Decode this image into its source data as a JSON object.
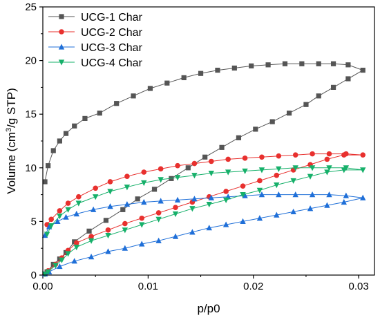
{
  "chart_data": {
    "type": "scatter",
    "title": "",
    "xlabel": "p/p0",
    "ylabel_parts": [
      "Volume (cm",
      "3",
      "/g STP)"
    ],
    "xlim": [
      0,
      0.0315
    ],
    "ylim": [
      0,
      25
    ],
    "xticks": [
      0,
      0.01,
      0.02,
      0.03
    ],
    "xtick_labels": [
      "0.00",
      "0.01",
      "0.02",
      "0.03"
    ],
    "yticks": [
      0,
      5,
      10,
      15,
      20,
      25
    ],
    "ytick_labels": [
      "0",
      "5",
      "10",
      "15",
      "20",
      "25"
    ],
    "grid": false,
    "legend_position": "top-left",
    "series": [
      {
        "name": "UCG-1 Char",
        "color": "#555555",
        "marker": "square",
        "x": [
          0.0002,
          0.0004,
          0.001,
          0.0016,
          0.0022,
          0.003,
          0.0044,
          0.006,
          0.0076,
          0.009,
          0.0106,
          0.0122,
          0.0138,
          0.0154,
          0.017,
          0.0186,
          0.0202,
          0.0218,
          0.0234,
          0.025,
          0.0262,
          0.0276,
          0.029,
          0.0304,
          0.029,
          0.0276,
          0.0262,
          0.0246,
          0.023,
          0.0214,
          0.0198,
          0.0182,
          0.0166,
          0.015,
          0.0134,
          0.0118,
          0.0102,
          0.0086,
          0.007,
          0.0054,
          0.004,
          0.003,
          0.0022,
          0.0016,
          0.001,
          0.0005,
          0.0002
        ],
        "y": [
          0.1,
          0.3,
          1.0,
          1.5,
          2.1,
          3.1,
          4.1,
          5.1,
          6.1,
          7.1,
          8.0,
          9.0,
          10.0,
          11.0,
          11.9,
          12.8,
          13.6,
          14.3,
          15.1,
          15.9,
          16.7,
          17.5,
          18.3,
          19.1,
          19.6,
          19.7,
          19.7,
          19.7,
          19.7,
          19.6,
          19.5,
          19.3,
          19.1,
          18.8,
          18.4,
          17.9,
          17.4,
          16.7,
          16.0,
          15.1,
          14.6,
          13.9,
          13.2,
          12.5,
          11.6,
          10.2,
          8.7
        ]
      },
      {
        "name": "UCG-2 Char",
        "color": "#e8302e",
        "marker": "circle",
        "x": [
          0.0002,
          0.0005,
          0.0012,
          0.0018,
          0.0024,
          0.0032,
          0.0046,
          0.0062,
          0.0078,
          0.0094,
          0.011,
          0.0126,
          0.0142,
          0.0158,
          0.0174,
          0.019,
          0.0206,
          0.0222,
          0.0238,
          0.0254,
          0.027,
          0.0286,
          0.0304,
          0.0288,
          0.0272,
          0.0256,
          0.024,
          0.0224,
          0.0208,
          0.0192,
          0.0176,
          0.016,
          0.0144,
          0.0128,
          0.0112,
          0.0096,
          0.008,
          0.0064,
          0.005,
          0.0034,
          0.0024,
          0.0016,
          0.0008,
          0.0004
        ],
        "y": [
          0.1,
          0.4,
          1.0,
          1.6,
          2.3,
          3.0,
          3.6,
          4.2,
          4.8,
          5.3,
          5.8,
          6.3,
          6.8,
          7.3,
          7.8,
          8.3,
          8.8,
          9.3,
          9.8,
          10.3,
          10.8,
          11.2,
          11.2,
          11.3,
          11.3,
          11.3,
          11.2,
          11.1,
          11.0,
          10.9,
          10.8,
          10.6,
          10.4,
          10.2,
          9.9,
          9.6,
          9.2,
          8.7,
          8.1,
          7.3,
          6.7,
          6.0,
          5.2,
          4.7
        ]
      },
      {
        "name": "UCG-3 Char",
        "color": "#1f6fd8",
        "marker": "triangle-up",
        "x": [
          0.0002,
          0.0006,
          0.0016,
          0.003,
          0.0046,
          0.0062,
          0.0078,
          0.0094,
          0.011,
          0.0126,
          0.0142,
          0.0158,
          0.0174,
          0.019,
          0.0206,
          0.0222,
          0.0238,
          0.0254,
          0.027,
          0.0286,
          0.0304,
          0.0288,
          0.0272,
          0.0256,
          0.024,
          0.0224,
          0.0208,
          0.0192,
          0.0176,
          0.016,
          0.0144,
          0.0128,
          0.0112,
          0.0096,
          0.008,
          0.0064,
          0.0048,
          0.0032,
          0.0022,
          0.0014,
          0.0006,
          0.0002
        ],
        "y": [
          0.1,
          0.3,
          0.8,
          1.3,
          1.7,
          2.2,
          2.5,
          2.9,
          3.2,
          3.6,
          4.0,
          4.4,
          4.7,
          5.0,
          5.3,
          5.6,
          5.9,
          6.2,
          6.5,
          6.8,
          7.2,
          7.4,
          7.5,
          7.5,
          7.5,
          7.5,
          7.5,
          7.4,
          7.3,
          7.2,
          7.1,
          7.0,
          6.9,
          6.8,
          6.6,
          6.4,
          6.1,
          5.7,
          5.4,
          5.0,
          4.5,
          3.7
        ]
      },
      {
        "name": "UCG-4 Char",
        "color": "#16b06a",
        "marker": "triangle-down",
        "x": [
          0.0002,
          0.0005,
          0.0012,
          0.0018,
          0.0024,
          0.0032,
          0.0046,
          0.0062,
          0.0078,
          0.0094,
          0.011,
          0.0126,
          0.0142,
          0.0158,
          0.0174,
          0.019,
          0.0206,
          0.0222,
          0.0238,
          0.0254,
          0.027,
          0.0286,
          0.0304,
          0.0288,
          0.0272,
          0.0256,
          0.024,
          0.0224,
          0.0208,
          0.0192,
          0.0176,
          0.016,
          0.0144,
          0.0128,
          0.0112,
          0.0096,
          0.008,
          0.0064,
          0.005,
          0.0034,
          0.0024,
          0.0016,
          0.0008,
          0.0004
        ],
        "y": [
          0.1,
          0.3,
          0.9,
          1.4,
          2.0,
          2.6,
          3.2,
          3.7,
          4.2,
          4.7,
          5.2,
          5.7,
          6.2,
          6.6,
          7.0,
          7.5,
          7.9,
          8.4,
          8.8,
          9.2,
          9.6,
          9.8,
          9.8,
          10.0,
          10.0,
          10.0,
          10.0,
          9.9,
          9.8,
          9.7,
          9.6,
          9.5,
          9.3,
          9.1,
          8.9,
          8.6,
          8.2,
          7.8,
          7.3,
          6.7,
          6.1,
          5.5,
          4.6,
          3.8
        ]
      }
    ]
  }
}
